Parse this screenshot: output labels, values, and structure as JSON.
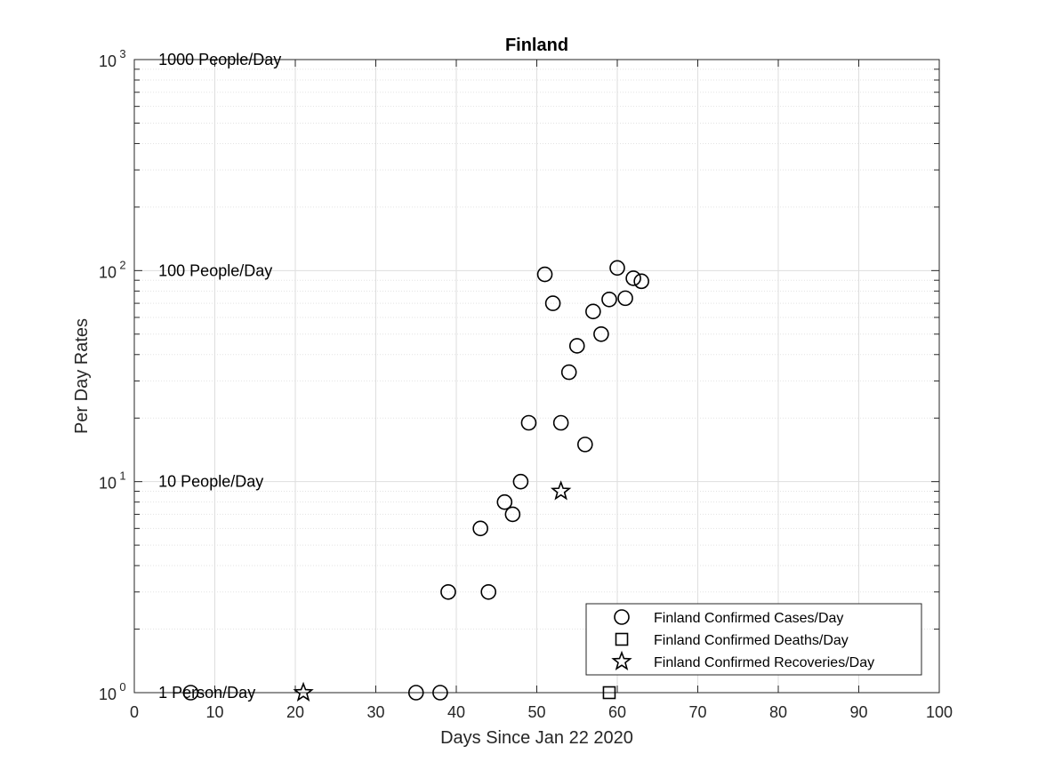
{
  "chart_data": {
    "type": "scatter",
    "title": "Finland",
    "xlabel": "Days Since Jan 22 2020",
    "ylabel": "Per Day Rates",
    "xlim": [
      0,
      100
    ],
    "ylim": [
      1,
      1000
    ],
    "yscale": "log",
    "grid": true,
    "legend_position": "bottom-right",
    "x_ticks": [
      0,
      10,
      20,
      30,
      40,
      50,
      60,
      70,
      80,
      90,
      100
    ],
    "y_ticks": [
      {
        "value": 1,
        "base": "10",
        "exp": "0"
      },
      {
        "value": 10,
        "base": "10",
        "exp": "1"
      },
      {
        "value": 100,
        "base": "10",
        "exp": "2"
      },
      {
        "value": 1000,
        "base": "10",
        "exp": "3"
      }
    ],
    "annotations": [
      {
        "text": "1000 People/Day",
        "x": 3,
        "y": 1000
      },
      {
        "text": "100 People/Day",
        "x": 3,
        "y": 100
      },
      {
        "text": "10 People/Day",
        "x": 3,
        "y": 10
      },
      {
        "text": "1 Person/Day",
        "x": 3,
        "y": 1
      }
    ],
    "series": [
      {
        "name": "Finland Confirmed Cases/Day",
        "marker": "circle",
        "points": [
          [
            7,
            1
          ],
          [
            35,
            1
          ],
          [
            38,
            1
          ],
          [
            39,
            3
          ],
          [
            43,
            6
          ],
          [
            44,
            3
          ],
          [
            46,
            8
          ],
          [
            47,
            7
          ],
          [
            48,
            10
          ],
          [
            49,
            19
          ],
          [
            51,
            96
          ],
          [
            52,
            70
          ],
          [
            53,
            19
          ],
          [
            54,
            33
          ],
          [
            55,
            44
          ],
          [
            56,
            15
          ],
          [
            57,
            64
          ],
          [
            58,
            50
          ],
          [
            59,
            73
          ],
          [
            60,
            103
          ],
          [
            61,
            74
          ],
          [
            62,
            92
          ],
          [
            63,
            89
          ]
        ]
      },
      {
        "name": "Finland Confirmed Deaths/Day",
        "marker": "square",
        "points": [
          [
            59,
            1
          ]
        ]
      },
      {
        "name": "Finland Confirmed Recoveries/Day",
        "marker": "star",
        "points": [
          [
            21,
            1
          ],
          [
            53,
            9
          ]
        ]
      }
    ]
  }
}
